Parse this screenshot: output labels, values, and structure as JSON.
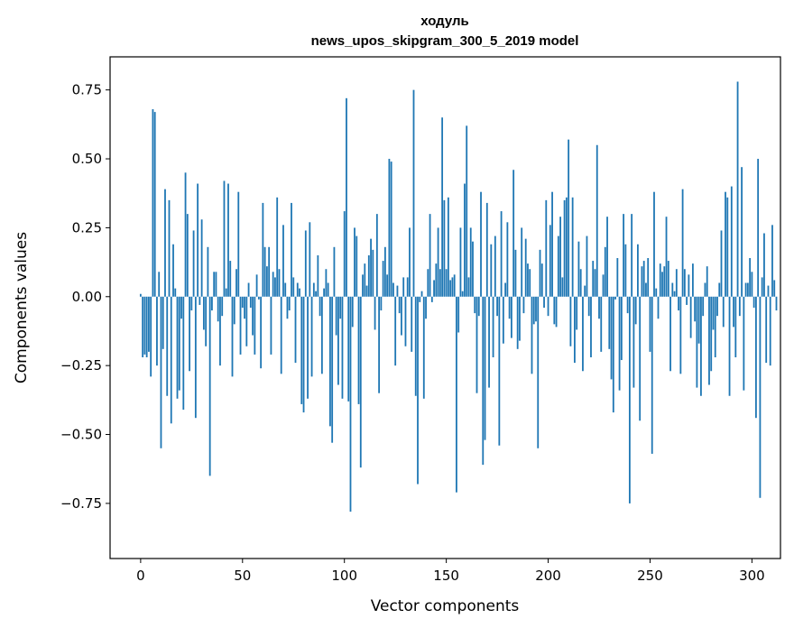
{
  "chart_data": {
    "type": "bar",
    "title_line1": "ходуль",
    "title_line2": "news_upos_skipgram_300_5_2019 model",
    "xlabel": "Vector components",
    "ylabel": "Components values",
    "xlim": [
      -15,
      314
    ],
    "ylim": [
      -0.95,
      0.87
    ],
    "xticks": [
      0,
      50,
      100,
      150,
      200,
      250,
      300
    ],
    "xtick_labels": [
      "0",
      "50",
      "100",
      "150",
      "200",
      "250",
      "300"
    ],
    "yticks": [
      -0.75,
      -0.5,
      -0.25,
      0.0,
      0.25,
      0.5,
      0.75
    ],
    "ytick_labels": [
      "−0.75",
      "−0.50",
      "−0.25",
      "0.00",
      "0.25",
      "0.50",
      "0.75"
    ],
    "grid": false,
    "bar_color": "#1f77b4",
    "values": [
      0.01,
      -0.22,
      -0.21,
      -0.22,
      -0.2,
      -0.29,
      0.68,
      0.67,
      -0.25,
      0.09,
      -0.55,
      -0.19,
      0.39,
      -0.36,
      0.35,
      -0.46,
      0.19,
      0.03,
      -0.37,
      -0.34,
      -0.08,
      -0.41,
      0.45,
      0.3,
      -0.27,
      -0.05,
      0.24,
      -0.44,
      0.41,
      -0.03,
      0.28,
      -0.12,
      -0.18,
      0.18,
      -0.65,
      -0.05,
      0.09,
      0.09,
      -0.09,
      -0.25,
      -0.07,
      0.42,
      0.03,
      0.41,
      0.13,
      -0.29,
      -0.1,
      0.1,
      0.38,
      -0.21,
      -0.04,
      -0.08,
      -0.18,
      0.05,
      -0.04,
      -0.14,
      -0.21,
      0.08,
      -0.01,
      -0.26,
      0.34,
      0.18,
      0.11,
      0.18,
      -0.21,
      0.09,
      0.07,
      0.36,
      0.1,
      -0.28,
      0.26,
      0.05,
      -0.08,
      -0.05,
      0.34,
      0.07,
      -0.24,
      0.05,
      0.03,
      -0.39,
      -0.42,
      0.24,
      -0.37,
      0.27,
      -0.29,
      0.05,
      0.02,
      0.15,
      -0.07,
      -0.28,
      0.03,
      0.1,
      0.05,
      -0.47,
      -0.53,
      0.18,
      -0.14,
      -0.32,
      -0.08,
      -0.37,
      0.31,
      0.72,
      -0.38,
      -0.78,
      -0.11,
      0.25,
      0.22,
      -0.39,
      -0.62,
      0.08,
      0.12,
      0.04,
      0.15,
      0.21,
      0.17,
      -0.12,
      0.3,
      -0.35,
      -0.05,
      0.13,
      0.18,
      0.08,
      0.5,
      0.49,
      0.05,
      -0.25,
      0.04,
      -0.06,
      -0.14,
      0.07,
      -0.18,
      0.07,
      0.25,
      -0.2,
      0.75,
      -0.36,
      -0.68,
      -0.02,
      0.02,
      -0.37,
      -0.08,
      0.1,
      0.3,
      -0.02,
      0.06,
      0.12,
      0.25,
      0.1,
      0.65,
      0.35,
      0.1,
      0.36,
      0.06,
      0.07,
      0.08,
      -0.71,
      -0.13,
      0.25,
      0.02,
      0.41,
      0.62,
      0.07,
      0.25,
      0.2,
      -0.06,
      -0.35,
      -0.07,
      0.38,
      -0.61,
      -0.52,
      0.34,
      -0.33,
      0.19,
      -0.22,
      0.22,
      -0.07,
      -0.54,
      0.31,
      -0.17,
      0.05,
      0.27,
      -0.08,
      -0.15,
      0.46,
      0.17,
      -0.19,
      -0.16,
      0.25,
      -0.06,
      0.21,
      0.12,
      0.1,
      -0.28,
      -0.1,
      -0.09,
      -0.55,
      0.17,
      0.12,
      -0.04,
      0.35,
      -0.07,
      0.26,
      0.38,
      -0.1,
      -0.11,
      0.22,
      0.29,
      0.07,
      0.35,
      0.36,
      0.57,
      -0.18,
      0.36,
      -0.24,
      -0.12,
      0.2,
      0.1,
      -0.27,
      0.04,
      0.22,
      -0.07,
      -0.22,
      0.13,
      0.1,
      0.55,
      -0.08,
      -0.2,
      0.08,
      0.18,
      0.29,
      -0.19,
      -0.3,
      -0.42,
      -0.01,
      0.14,
      -0.34,
      -0.23,
      0.3,
      0.19,
      -0.06,
      -0.75,
      0.3,
      -0.33,
      -0.1,
      0.19,
      -0.45,
      0.11,
      0.13,
      0.05,
      0.14,
      -0.2,
      -0.57,
      0.38,
      0.03,
      -0.08,
      0.12,
      0.09,
      0.11,
      0.29,
      0.13,
      -0.27,
      0.05,
      0.02,
      0.1,
      -0.05,
      -0.28,
      0.39,
      0.1,
      -0.03,
      0.08,
      -0.15,
      0.12,
      -0.09,
      -0.33,
      -0.17,
      -0.36,
      -0.07,
      0.05,
      0.11,
      -0.32,
      -0.27,
      -0.12,
      -0.22,
      -0.07,
      0.05,
      0.24,
      -0.11,
      0.38,
      0.36,
      -0.36,
      0.4,
      -0.11,
      -0.22,
      0.78,
      -0.07,
      0.47,
      -0.34,
      0.05,
      0.05,
      0.14,
      0.09,
      -0.04,
      -0.44,
      0.5,
      -0.73,
      0.07,
      0.23,
      -0.24,
      0.04,
      -0.25,
      0.26,
      0.06,
      -0.05
    ]
  }
}
